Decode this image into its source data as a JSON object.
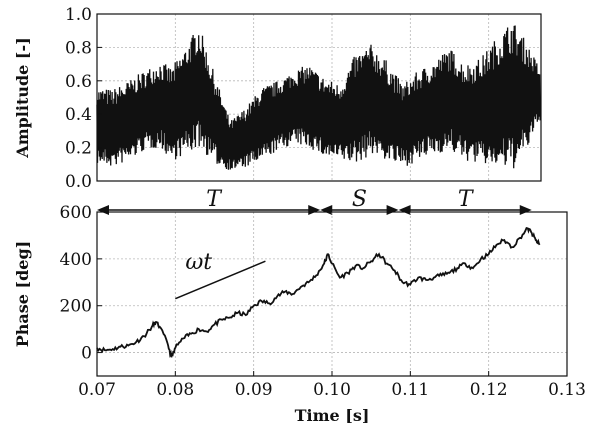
{
  "colors": {
    "line": "#111111",
    "grid": "#b8b8b8",
    "background": "#ffffff"
  },
  "chart_data": [
    {
      "type": "line",
      "title": "",
      "ylabel": "Amplitude [-]",
      "xlim": [
        0.07,
        0.127
      ],
      "ylim": [
        0.0,
        1.0
      ],
      "yticks": [
        "0.0",
        "0.2",
        "0.4",
        "0.6",
        "0.8",
        "1.0"
      ],
      "grid": true,
      "series": [
        {
          "style": "high-frequency oscillation envelope",
          "x": [
            0.07,
            0.072,
            0.074,
            0.076,
            0.078,
            0.0795,
            0.081,
            0.083,
            0.085,
            0.087,
            0.089,
            0.091,
            0.093,
            0.095,
            0.097,
            0.099,
            0.101,
            0.103,
            0.105,
            0.107,
            0.109,
            0.111,
            0.113,
            0.115,
            0.117,
            0.119,
            0.121,
            0.123,
            0.125,
            0.1265
          ],
          "upper": [
            0.56,
            0.55,
            0.6,
            0.66,
            0.72,
            0.68,
            0.78,
            0.94,
            0.64,
            0.36,
            0.44,
            0.56,
            0.6,
            0.66,
            0.7,
            0.62,
            0.58,
            0.76,
            0.82,
            0.72,
            0.58,
            0.66,
            0.72,
            0.8,
            0.7,
            0.74,
            0.86,
            0.97,
            0.82,
            0.68
          ],
          "lower": [
            0.1,
            0.08,
            0.12,
            0.18,
            0.2,
            0.12,
            0.15,
            0.2,
            0.1,
            0.06,
            0.08,
            0.12,
            0.18,
            0.22,
            0.2,
            0.14,
            0.12,
            0.1,
            0.16,
            0.12,
            0.08,
            0.12,
            0.16,
            0.18,
            0.12,
            0.1,
            0.08,
            0.06,
            0.2,
            0.36
          ]
        }
      ],
      "annotations": [
        {
          "text": "T",
          "x_start": 0.07,
          "x_end": 0.0985
        },
        {
          "text": "S",
          "x_start": 0.0985,
          "x_end": 0.1085
        },
        {
          "text": "T",
          "x_start": 0.1085,
          "x_end": 0.1255
        }
      ]
    },
    {
      "type": "line",
      "title": "",
      "xlabel": "Time [s]",
      "ylabel": "Phase [deg]",
      "xlim": [
        0.07,
        0.13
      ],
      "ylim": [
        -100,
        600
      ],
      "xticks": [
        "0.07",
        "0.08",
        "0.09",
        "0.10",
        "0.11",
        "0.12",
        "0.13"
      ],
      "yticks": [
        "0",
        "200",
        "400",
        "600"
      ],
      "grid": true,
      "series": [
        {
          "x": [
            0.07,
            0.071,
            0.072,
            0.073,
            0.074,
            0.075,
            0.076,
            0.077,
            0.0775,
            0.078,
            0.079,
            0.0795,
            0.08,
            0.081,
            0.082,
            0.083,
            0.084,
            0.085,
            0.086,
            0.087,
            0.088,
            0.089,
            0.09,
            0.091,
            0.092,
            0.093,
            0.094,
            0.095,
            0.096,
            0.097,
            0.098,
            0.099,
            0.0995,
            0.1,
            0.101,
            0.102,
            0.103,
            0.104,
            0.105,
            0.106,
            0.107,
            0.108,
            0.109,
            0.11,
            0.111,
            0.112,
            0.113,
            0.114,
            0.115,
            0.116,
            0.117,
            0.118,
            0.119,
            0.12,
            0.121,
            0.122,
            0.123,
            0.124,
            0.125,
            0.1255,
            0.126,
            0.1265
          ],
          "y": [
            20,
            10,
            15,
            25,
            30,
            45,
            70,
            110,
            130,
            110,
            40,
            -20,
            20,
            60,
            80,
            100,
            90,
            120,
            140,
            150,
            170,
            160,
            200,
            220,
            210,
            240,
            260,
            250,
            280,
            300,
            330,
            380,
            420,
            380,
            320,
            340,
            370,
            360,
            390,
            420,
            380,
            350,
            300,
            290,
            320,
            310,
            320,
            330,
            340,
            360,
            380,
            360,
            400,
            420,
            460,
            480,
            450,
            490,
            530,
            510,
            480,
            460
          ]
        }
      ],
      "annotations": [
        {
          "text": "ωt",
          "x_start": 0.08,
          "y_start": 230,
          "x_end": 0.0915,
          "y_end": 390
        }
      ]
    }
  ]
}
